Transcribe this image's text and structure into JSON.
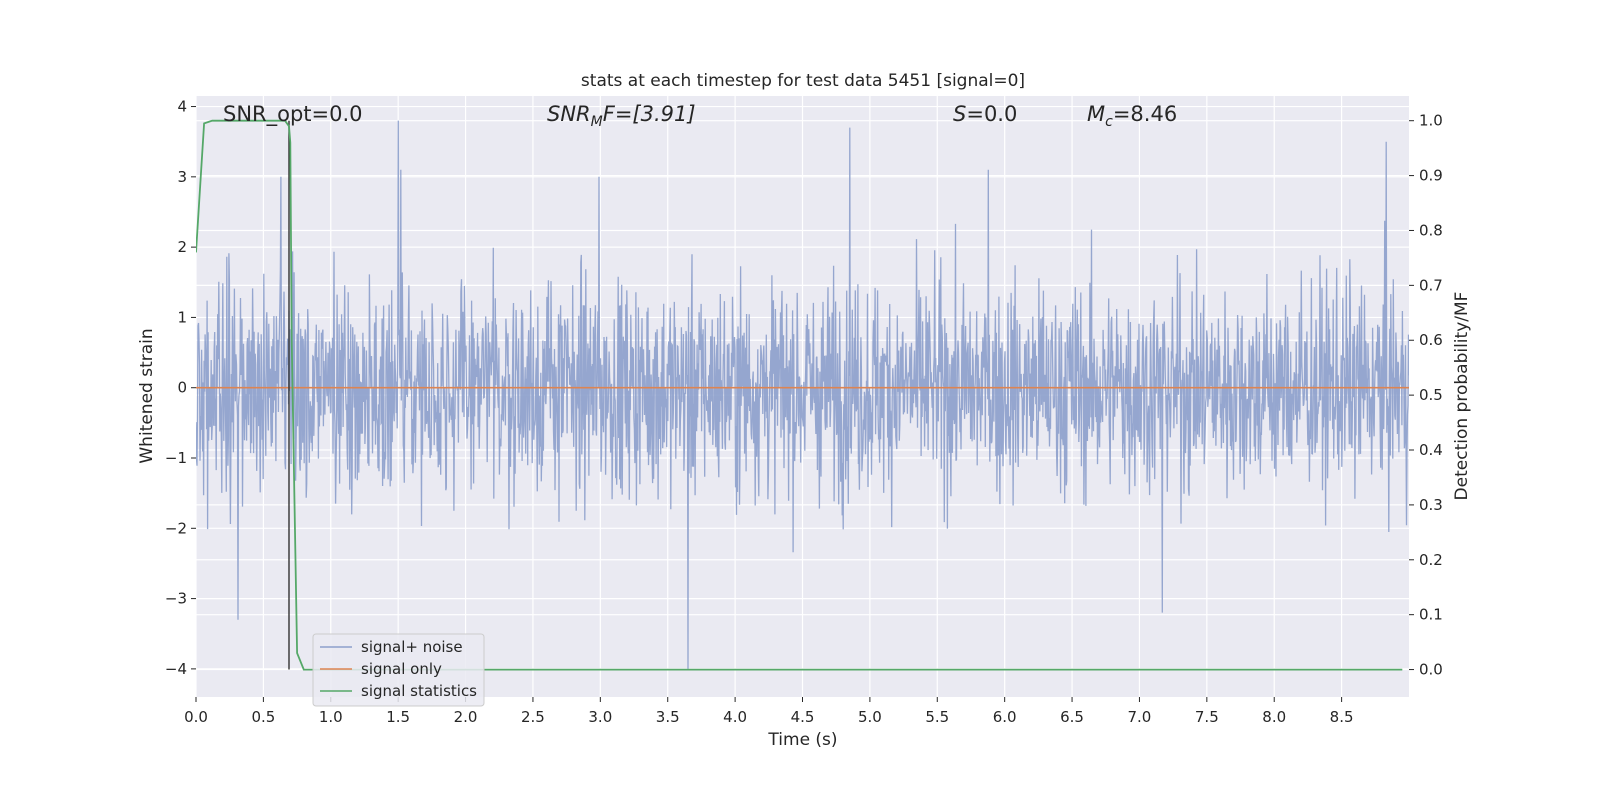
{
  "chart_data": {
    "type": "line",
    "title": "stats at each timestep for test data 5451 [signal=0]",
    "xlabel": "Time (s)",
    "ylabel": "Whitened strain",
    "ylabel_right": "Detection probability/MF",
    "xlim": [
      0.0,
      9.0
    ],
    "ylim": [
      -4.4,
      4.15
    ],
    "ylim_right": [
      -0.05,
      1.045
    ],
    "x_ticks": [
      "0.0",
      "0.5",
      "1.0",
      "1.5",
      "2.0",
      "2.5",
      "3.0",
      "3.5",
      "4.0",
      "4.5",
      "5.0",
      "5.5",
      "6.0",
      "6.5",
      "7.0",
      "7.5",
      "8.0",
      "8.5"
    ],
    "y_ticks": [
      "4",
      "3",
      "2",
      "1",
      "0",
      "−1",
      "−2",
      "−3",
      "−4"
    ],
    "y_ticks_right": [
      "1.0",
      "0.9",
      "0.8",
      "0.7",
      "0.6",
      "0.5",
      "0.4",
      "0.3",
      "0.2",
      "0.1",
      "0.0"
    ],
    "grid": true,
    "legend_position": "lower-left",
    "background": "#eaeaf2",
    "annotations": {
      "snr_opt": "SNR_opt=0.0",
      "snr_mf_main": "SNR",
      "snr_mf_sub": "M",
      "snr_mf_rest": "F=[3.91]",
      "s_main": "S",
      "s_rest": "=0.0",
      "mc_main": "M",
      "mc_sub": "c",
      "mc_rest": "=8.46"
    },
    "marker_line_x": 0.69,
    "series": [
      {
        "name": "signal+ noise",
        "color": "#8c9fcb",
        "axis": "left",
        "style": "noise",
        "x_range": [
          0.0,
          9.0
        ],
        "approx_amplitude": 2.2,
        "peaks": [
          {
            "x": 0.31,
            "y": -3.3
          },
          {
            "x": 0.63,
            "y": 3.0
          },
          {
            "x": 1.5,
            "y": 3.8
          },
          {
            "x": 1.52,
            "y": 3.1
          },
          {
            "x": 2.99,
            "y": 3.0
          },
          {
            "x": 3.65,
            "y": -4.0
          },
          {
            "x": 4.85,
            "y": 3.7
          },
          {
            "x": 5.88,
            "y": 3.1
          },
          {
            "x": 7.17,
            "y": -3.2
          },
          {
            "x": 8.83,
            "y": 3.5
          },
          {
            "x": 4.67,
            "y": -0.6
          },
          {
            "x": 3.7,
            "y": 0.65
          }
        ]
      },
      {
        "name": "signal only",
        "color": "#dd8452",
        "axis": "left",
        "x": [
          0.0,
          9.0
        ],
        "y": [
          0.0,
          0.0
        ]
      },
      {
        "name": "signal statistics",
        "color": "#55a868",
        "axis": "right",
        "x": [
          0.0,
          0.06,
          0.12,
          0.2,
          0.3,
          0.4,
          0.5,
          0.6,
          0.66,
          0.69,
          0.7,
          0.71,
          0.75,
          0.8,
          0.9,
          1.0,
          2.0,
          4.0,
          6.0,
          8.0,
          8.95
        ],
        "y": [
          0.76,
          0.995,
          1.0,
          1.0,
          1.0,
          1.0,
          1.0,
          1.0,
          1.0,
          0.99,
          0.96,
          0.6,
          0.03,
          0.0,
          0.0,
          0.0,
          0.0,
          0.0,
          0.0,
          0.0,
          0.0
        ]
      }
    ]
  }
}
